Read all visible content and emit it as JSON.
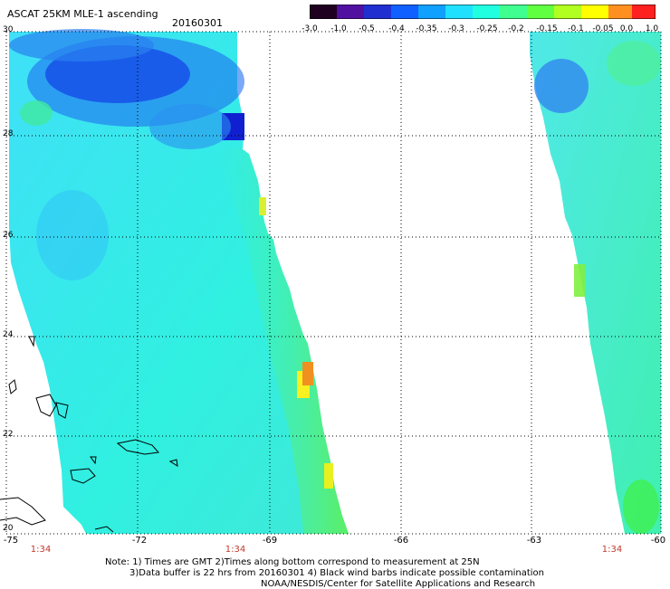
{
  "header": {
    "title": "ASCAT 25KM MLE-1 ascending",
    "date": "20160301"
  },
  "colorbar": {
    "labels": [
      "-3.0",
      "-1.0",
      "-0.5",
      "-0.4",
      "-0.35",
      "-0.3",
      "-0.25",
      "-0.2",
      "-0.15",
      "-0.1",
      "-0.05",
      "0.0",
      "1.0"
    ],
    "colors": [
      "#200020",
      "#5010a0",
      "#2030d0",
      "#1060ff",
      "#10a0ff",
      "#20e0ff",
      "#20ffe0",
      "#40ff90",
      "#60ff40",
      "#b0ff20",
      "#ffff00",
      "#ff9020",
      "#ff2020"
    ]
  },
  "map": {
    "lat_labels": [
      "30",
      "28",
      "26",
      "24",
      "22",
      "20"
    ],
    "lon_labels": [
      "-75",
      "-72",
      "-69",
      "-66",
      "-63",
      "-60"
    ],
    "time_labels": [
      "1:34",
      "1:34",
      "1:34"
    ],
    "land_color": "#000000",
    "swath_colors": [
      "#2a6af0",
      "#30b8f8",
      "#40e0f8",
      "#30f0d0",
      "#50f080",
      "#70f040",
      "#f8f020",
      "#f09020"
    ]
  },
  "footer": {
    "note_line1": "Note: 1) Times are GMT 2)Times along bottom correspond to measurement at 25N",
    "note_line2": "3)Data buffer is 22 hrs from 20160301 4) Black wind barbs indicate possible contamination",
    "note_line3": "NOAA/NESDIS/Center for Satellite Applications and Research"
  }
}
